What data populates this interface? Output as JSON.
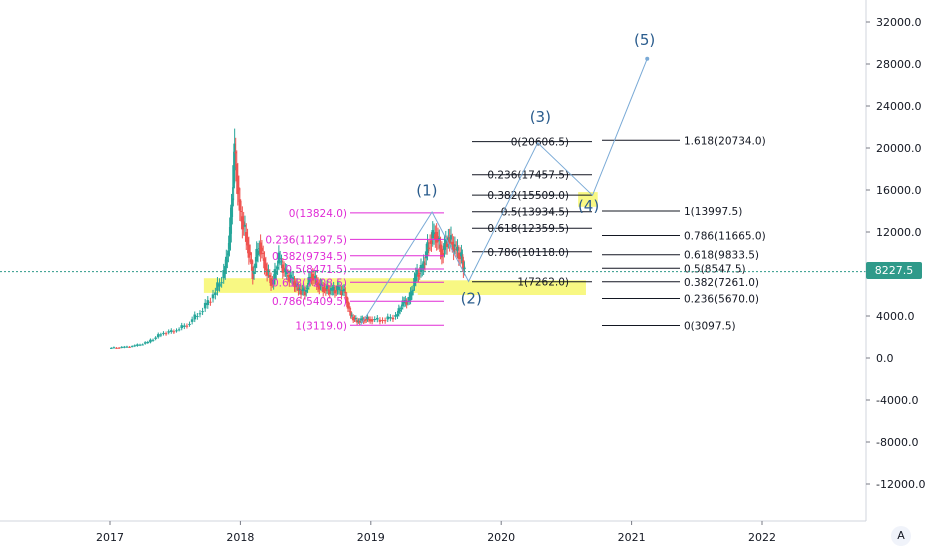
{
  "chart_data": {
    "type": "candlestick",
    "x_axis": {
      "tick_labels": [
        "2017",
        "2018",
        "2019",
        "2020",
        "2021",
        "2022"
      ],
      "range": [
        2016.7,
        2023.0
      ]
    },
    "y_axis": {
      "range": [
        -16000,
        33500
      ],
      "tick_values": [
        32000,
        28000,
        24000,
        20000,
        16000,
        12000,
        8000,
        4000,
        0,
        -4000,
        -8000,
        -12000
      ],
      "tick_labels": [
        "32000.0",
        "28000.0",
        "24000.0",
        "20000.0",
        "16000.0",
        "12000.0",
        "8000.0",
        "4000.0",
        "0.0",
        "-4000.0",
        "-8000.0",
        "-12000.0"
      ]
    },
    "last_price": {
      "value": 8227.5,
      "label": "8227.5",
      "color": "#2f9a8a"
    },
    "price_series": {
      "colors": {
        "up": "#26a69a",
        "down": "#ef5350"
      },
      "points": [
        [
          2017.0,
          950
        ],
        [
          2017.1,
          1000
        ],
        [
          2017.2,
          1150
        ],
        [
          2017.3,
          1500
        ],
        [
          2017.4,
          2300
        ],
        [
          2017.5,
          2600
        ],
        [
          2017.6,
          3200
        ],
        [
          2017.7,
          4400
        ],
        [
          2017.8,
          6000
        ],
        [
          2017.88,
          8000
        ],
        [
          2017.92,
          11000
        ],
        [
          2017.96,
          19600
        ],
        [
          2018.0,
          14000
        ],
        [
          2018.05,
          11500
        ],
        [
          2018.1,
          8000
        ],
        [
          2018.15,
          11000
        ],
        [
          2018.2,
          8500
        ],
        [
          2018.25,
          7000
        ],
        [
          2018.3,
          9500
        ],
        [
          2018.35,
          8000
        ],
        [
          2018.4,
          7500
        ],
        [
          2018.45,
          6500
        ],
        [
          2018.5,
          6300
        ],
        [
          2018.55,
          8000
        ],
        [
          2018.6,
          7000
        ],
        [
          2018.65,
          6600
        ],
        [
          2018.7,
          6400
        ],
        [
          2018.75,
          6500
        ],
        [
          2018.8,
          6300
        ],
        [
          2018.85,
          4000
        ],
        [
          2018.9,
          3500
        ],
        [
          2018.95,
          3700
        ],
        [
          2019.0,
          3700
        ],
        [
          2019.1,
          3600
        ],
        [
          2019.2,
          4000
        ],
        [
          2019.25,
          5200
        ],
        [
          2019.3,
          5500
        ],
        [
          2019.35,
          7800
        ],
        [
          2019.4,
          8500
        ],
        [
          2019.45,
          11000
        ],
        [
          2019.5,
          12000
        ],
        [
          2019.55,
          10000
        ],
        [
          2019.6,
          11500
        ],
        [
          2019.65,
          10400
        ],
        [
          2019.7,
          9500
        ],
        [
          2019.72,
          8200
        ]
      ]
    },
    "fib_sets": [
      {
        "name": "retracement-1",
        "color": "#e02bd6",
        "levels": [
          {
            "label": "0(13824.0)",
            "value": 13824.0
          },
          {
            "label": "0.236(11297.5)",
            "value": 11297.5
          },
          {
            "label": "0.382(9734.5)",
            "value": 9734.5
          },
          {
            "label": "0.5(8471.5)",
            "value": 8471.5
          },
          {
            "label": "0.618(7208.5)",
            "value": 7208.5
          },
          {
            "label": "0.786(5409.5)",
            "value": 5409.5
          },
          {
            "label": "1(3119.0)",
            "value": 3119.0
          }
        ]
      },
      {
        "name": "retracement-2",
        "color": "#131722",
        "levels": [
          {
            "label": "0(20606.5)",
            "value": 20606.5
          },
          {
            "label": "0.236(17457.5)",
            "value": 17457.5
          },
          {
            "label": "0.382(15509.0)",
            "value": 15509.0
          },
          {
            "label": "0.5(13934.5)",
            "value": 13934.5
          },
          {
            "label": "0.618(12359.5)",
            "value": 12359.5
          },
          {
            "label": "0.786(10118.0)",
            "value": 10118.0
          },
          {
            "label": "1(7262.0)",
            "value": 7262.0
          }
        ]
      },
      {
        "name": "extension",
        "color": "#131722",
        "levels": [
          {
            "label": "1.618(20734.0)",
            "value": 20734.0
          },
          {
            "label": "1(13997.5)",
            "value": 13997.5
          },
          {
            "label": "0.786(11665.0)",
            "value": 11665.0
          },
          {
            "label": "0.618(9833.5)",
            "value": 9833.5
          },
          {
            "label": "0.5(8547.5)",
            "value": 8547.5
          },
          {
            "label": "0.382(7261.0)",
            "value": 7261.0
          },
          {
            "label": "0.236(5670.0)",
            "value": 5670.0
          },
          {
            "label": "0(3097.5)",
            "value": 3097.5
          }
        ]
      }
    ],
    "wave_labels": [
      {
        "label": "(1)",
        "x": 2019.43,
        "y": 15500
      },
      {
        "label": "(2)",
        "x": 2019.77,
        "y": 5200
      },
      {
        "label": "(3)",
        "x": 2020.3,
        "y": 22500
      },
      {
        "label": "(4)",
        "x": 2020.67,
        "y": 14000
      },
      {
        "label": "(5)",
        "x": 2021.1,
        "y": 29800
      }
    ],
    "wave_path": [
      [
        2018.92,
        3100
      ],
      [
        2019.47,
        13900
      ],
      [
        2019.75,
        7300
      ],
      [
        2020.28,
        20500
      ],
      [
        2020.7,
        15500
      ],
      [
        2021.12,
        28500
      ]
    ],
    "highlight_zones": [
      {
        "x": [
          2017.72,
          2019.36
        ],
        "y": [
          6200,
          7600
        ]
      },
      {
        "x": [
          2019.36,
          2020.65
        ],
        "y": [
          6000,
          7400
        ]
      },
      {
        "x": [
          2020.59,
          2020.74
        ],
        "y": [
          14400,
          15800
        ]
      }
    ],
    "grid": false
  }
}
